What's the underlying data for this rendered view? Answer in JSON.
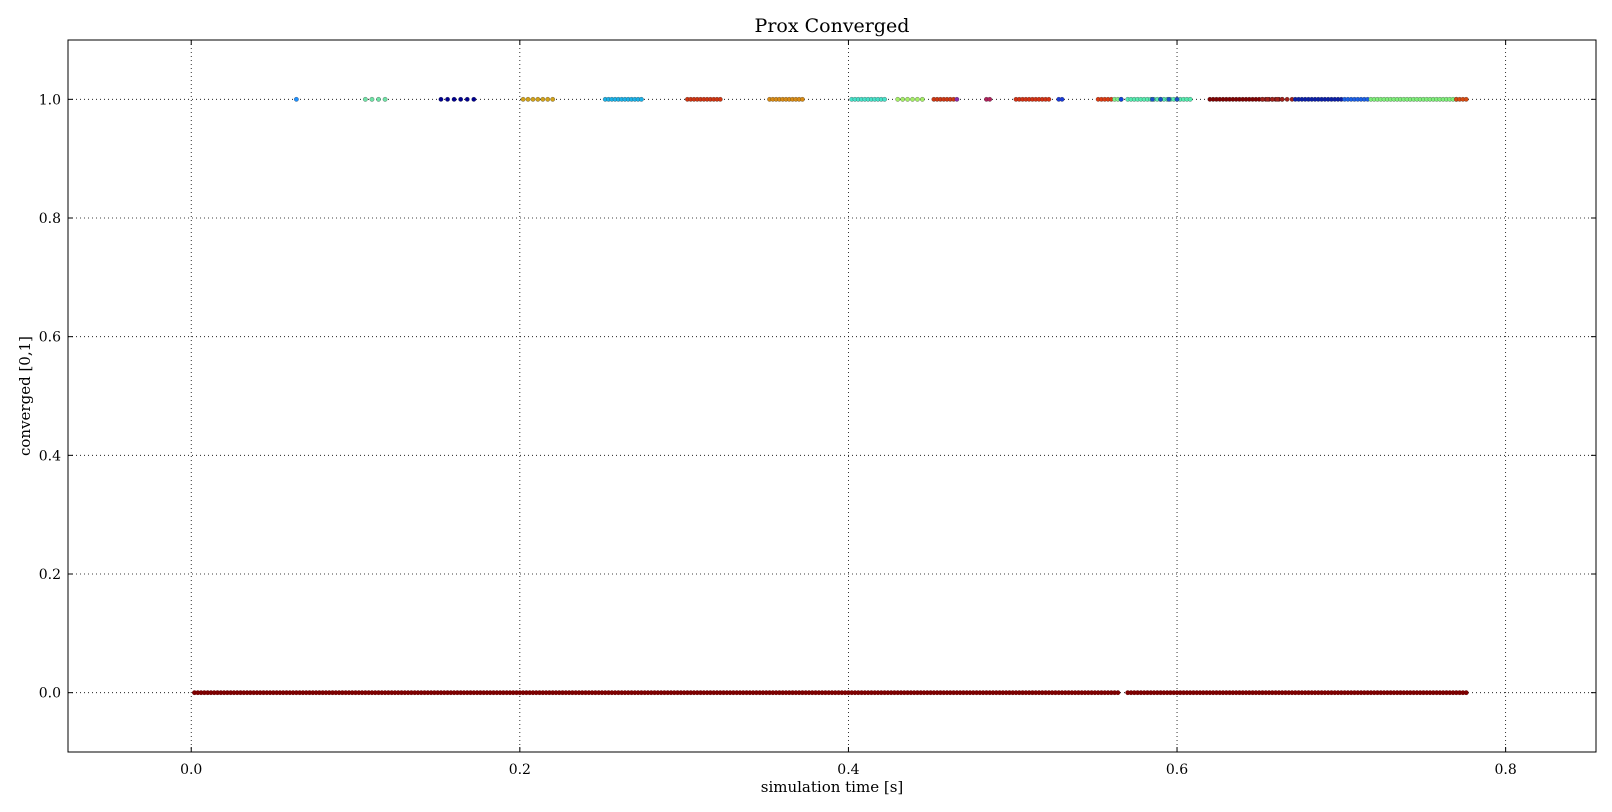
{
  "chart_data": {
    "type": "scatter",
    "title": "Prox Converged",
    "xlabel": "simulation time [s]",
    "ylabel": "converged [0,1]",
    "xlim": [
      -0.075,
      0.855
    ],
    "ylim": [
      -0.1,
      1.1
    ],
    "xticks": [
      0.0,
      0.2,
      0.4,
      0.6,
      0.8
    ],
    "xtick_labels": [
      "0.0",
      "0.2",
      "0.4",
      "0.6",
      "0.8"
    ],
    "yticks": [
      0.0,
      0.2,
      0.4,
      0.6,
      0.8,
      1.0
    ],
    "ytick_labels": [
      "0.0",
      "0.2",
      "0.4",
      "0.6",
      "0.8",
      "1.0"
    ],
    "grid": true,
    "colormap": "jet",
    "series": [
      {
        "y": 0,
        "color": "#800000",
        "ranges": [
          [
            0.002,
            0.565,
            0.002
          ],
          [
            0.57,
            0.777,
            0.002
          ]
        ]
      },
      {
        "y": 1,
        "clusters": [
          {
            "start": 0.064,
            "end": 0.064,
            "step": 0.002,
            "color": "#1e90ff"
          },
          {
            "start": 0.106,
            "end": 0.118,
            "step": 0.004,
            "color": "#6fe3a6"
          },
          {
            "start": 0.152,
            "end": 0.174,
            "step": 0.004,
            "color": "#00008f"
          },
          {
            "start": 0.202,
            "end": 0.222,
            "step": 0.003,
            "color": "#d2a21a"
          },
          {
            "start": 0.252,
            "end": 0.274,
            "step": 0.002,
            "color": "#1ab2e8"
          },
          {
            "start": 0.302,
            "end": 0.322,
            "step": 0.002,
            "color": "#d03410"
          },
          {
            "start": 0.352,
            "end": 0.372,
            "step": 0.002,
            "color": "#d88b14"
          },
          {
            "start": 0.402,
            "end": 0.422,
            "step": 0.002,
            "color": "#46e2c9"
          },
          {
            "start": 0.43,
            "end": 0.447,
            "step": 0.003,
            "color": "#a5ef66"
          },
          {
            "start": 0.452,
            "end": 0.464,
            "step": 0.002,
            "color": "#cf3611"
          },
          {
            "start": 0.466,
            "end": 0.466,
            "step": 0.002,
            "color": "#8a2bab"
          },
          {
            "start": 0.484,
            "end": 0.486,
            "step": 0.002,
            "color": "#b0205a"
          },
          {
            "start": 0.502,
            "end": 0.522,
            "step": 0.002,
            "color": "#d43012"
          },
          {
            "start": 0.528,
            "end": 0.53,
            "step": 0.002,
            "color": "#1a3ad8"
          },
          {
            "start": 0.552,
            "end": 0.56,
            "step": 0.002,
            "color": "#dd3a10"
          },
          {
            "start": 0.562,
            "end": 0.566,
            "step": 0.002,
            "color": "#7ff08a"
          },
          {
            "start": 0.566,
            "end": 0.566,
            "step": 0.002,
            "color": "#1040e0"
          },
          {
            "start": 0.57,
            "end": 0.608,
            "step": 0.002,
            "color": "#55ecb0"
          },
          {
            "start": 0.585,
            "end": 0.6,
            "step": 0.005,
            "color": "#1a50c8"
          },
          {
            "start": 0.62,
            "end": 0.664,
            "step": 0.002,
            "color": "#800000"
          },
          {
            "start": 0.652,
            "end": 0.672,
            "step": 0.003,
            "color": "#a0201a"
          },
          {
            "start": 0.672,
            "end": 0.7,
            "step": 0.002,
            "color": "#0a1ea8"
          },
          {
            "start": 0.702,
            "end": 0.716,
            "step": 0.002,
            "color": "#1a60e8"
          },
          {
            "start": 0.718,
            "end": 0.77,
            "step": 0.002,
            "color": "#7ff07a"
          },
          {
            "start": 0.77,
            "end": 0.776,
            "step": 0.002,
            "color": "#d84a10"
          }
        ]
      }
    ]
  }
}
